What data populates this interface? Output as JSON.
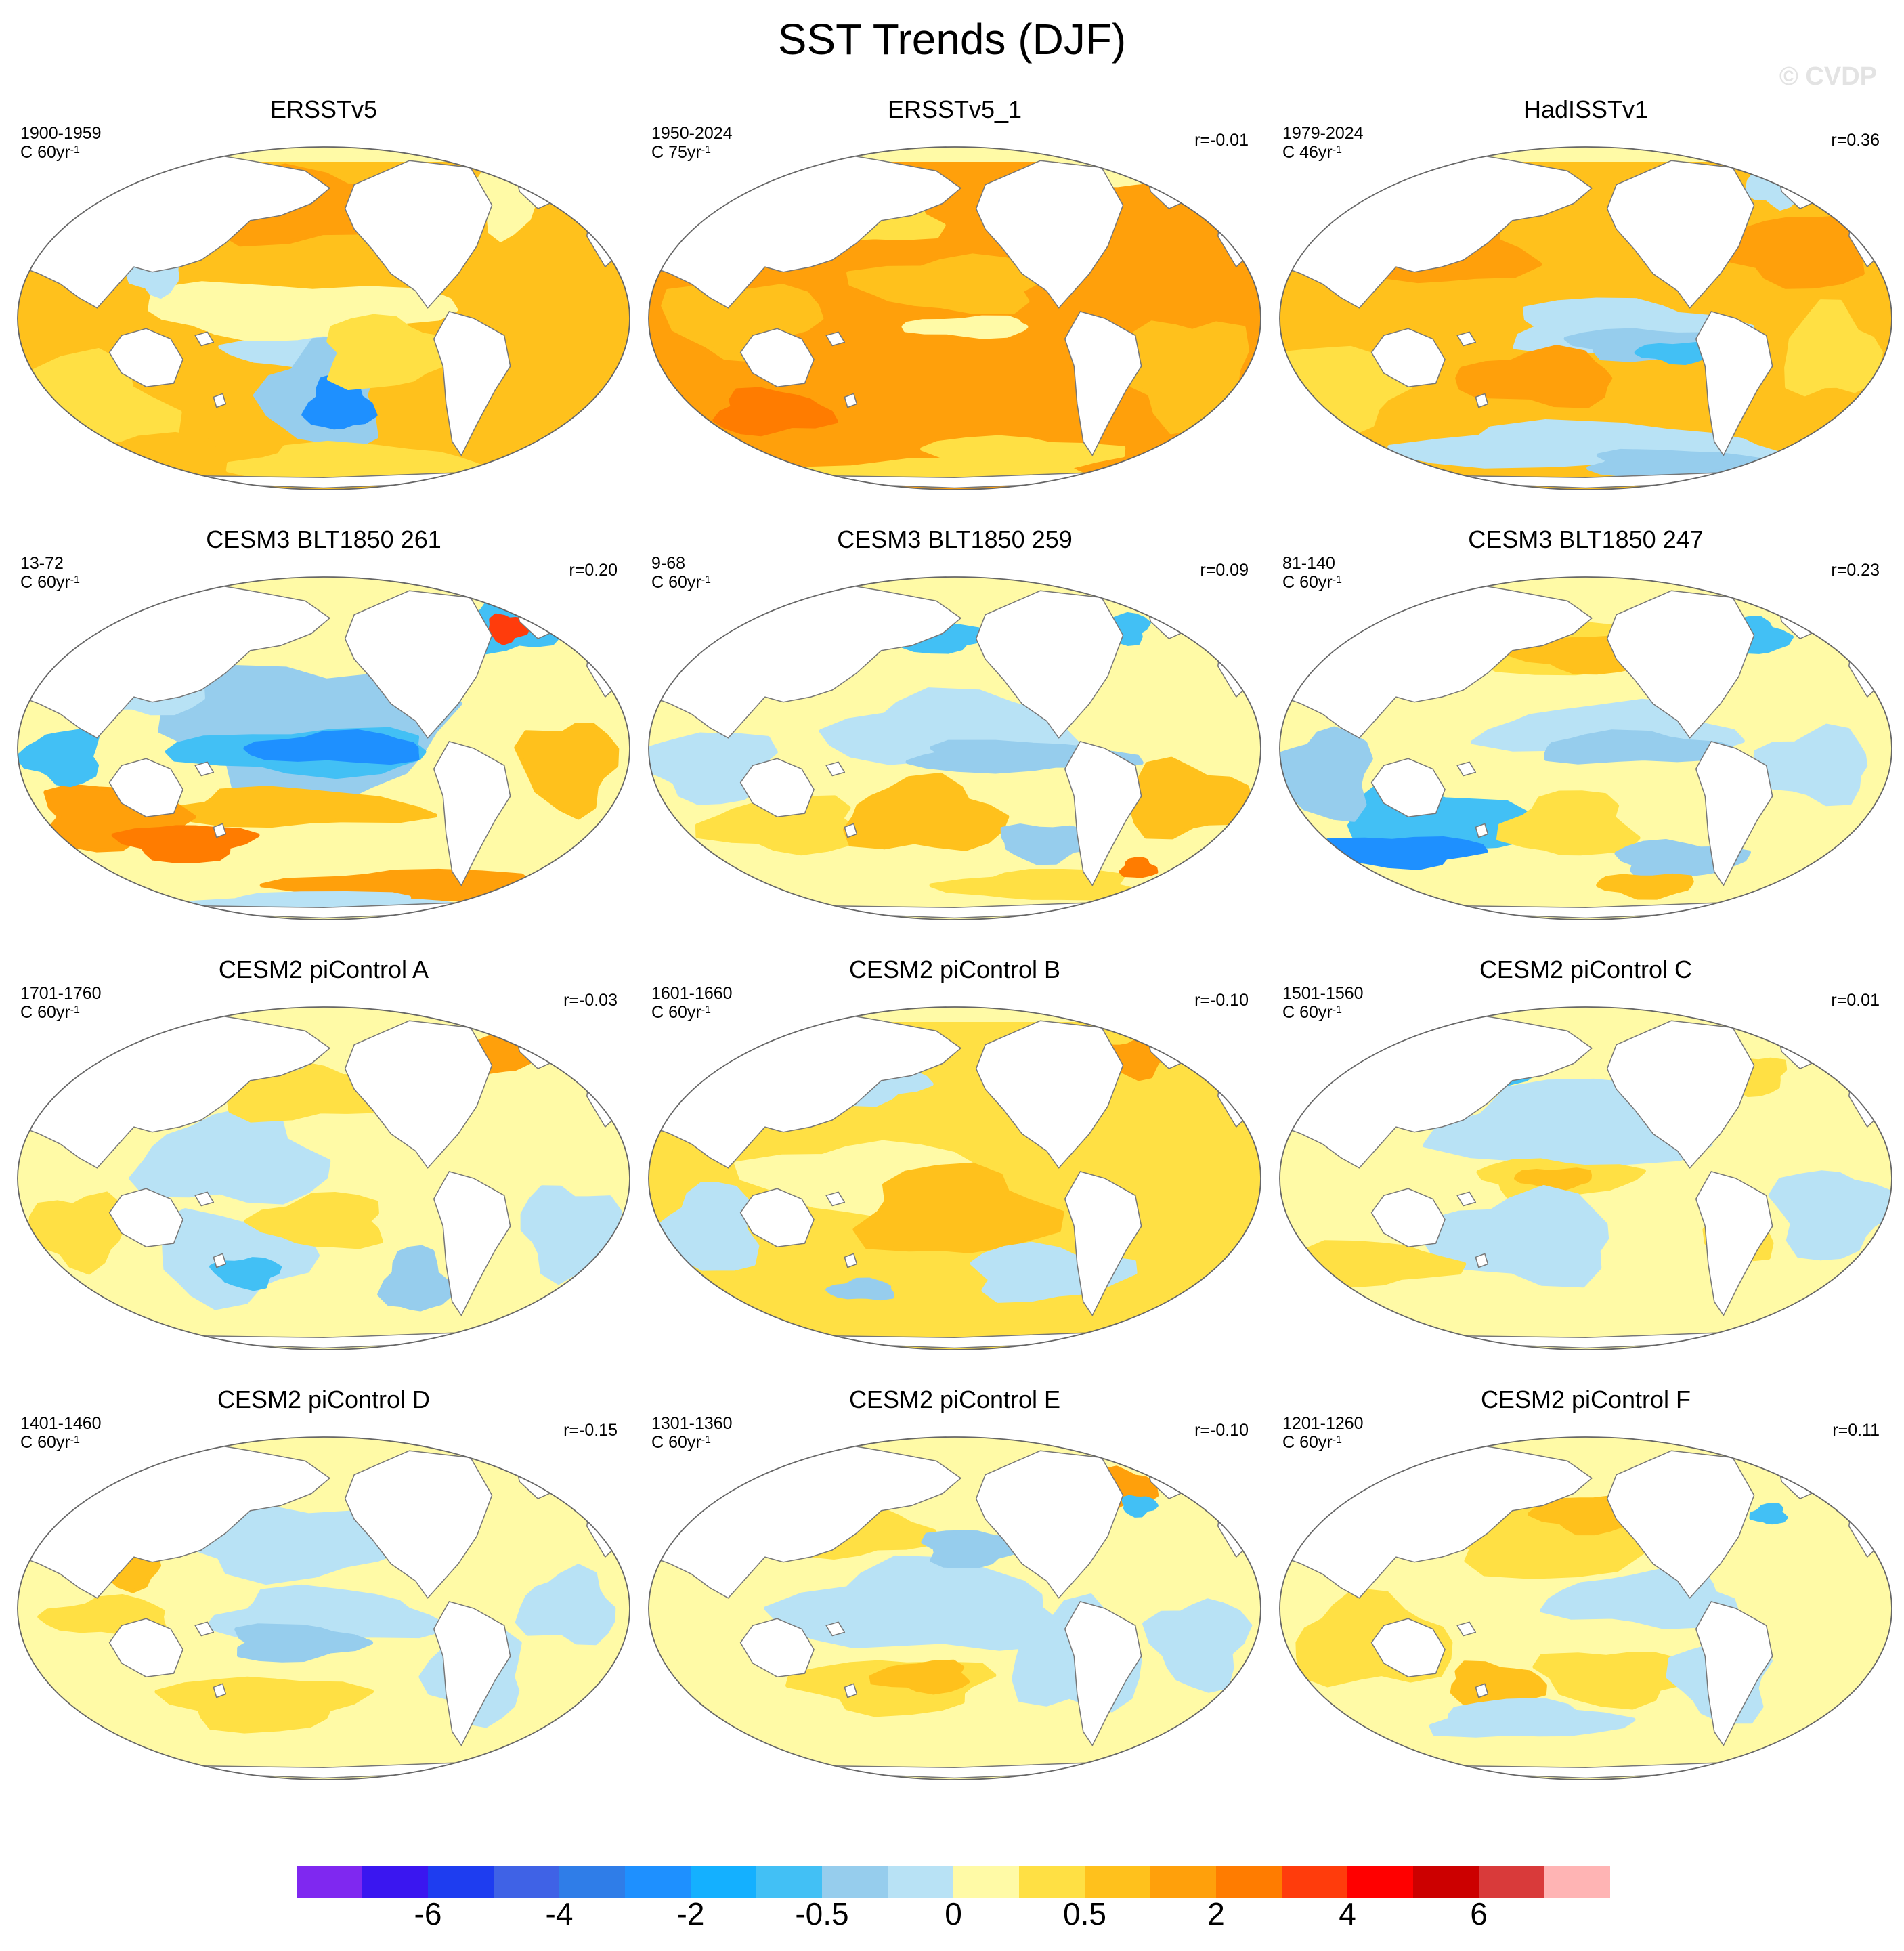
{
  "title": "SST Trends (DJF)",
  "watermark": "© CVDP",
  "unit_prefix": "C",
  "unit_suffix": "yr",
  "unit_exponent": "-1",
  "chart_data": {
    "type": "heatmap",
    "projection": "global Robinson-style map, Pacific-centered",
    "layout": {
      "rows": 4,
      "cols": 3
    },
    "panels": [
      {
        "title": "ERSSTv5",
        "years": "1900-1959",
        "trend_period": "60",
        "corr": "",
        "pattern": "warm"
      },
      {
        "title": "ERSSTv5_1",
        "years": "1950-2024",
        "trend_period": "75",
        "corr": "r=-0.01",
        "pattern": "strongwarm"
      },
      {
        "title": "HadISSTv1",
        "years": "1979-2024",
        "trend_period": "46",
        "corr": "r=0.36",
        "pattern": "lanina"
      },
      {
        "title": "CESM3 BLT1850 261",
        "years": "13-72",
        "trend_period": "60",
        "corr": "r=0.20",
        "pattern": "blt261"
      },
      {
        "title": "CESM3 BLT1850 259",
        "years": "9-68",
        "trend_period": "60",
        "corr": "r=0.09",
        "pattern": "blt259"
      },
      {
        "title": "CESM3 BLT1850 247",
        "years": "81-140",
        "trend_period": "60",
        "corr": "r=0.23",
        "pattern": "blt247"
      },
      {
        "title": "CESM2 piControl A",
        "years": "1701-1760",
        "trend_period": "60",
        "corr": "r=-0.03",
        "pattern": "picA"
      },
      {
        "title": "CESM2 piControl B",
        "years": "1601-1660",
        "trend_period": "60",
        "corr": "r=-0.10",
        "pattern": "picB"
      },
      {
        "title": "CESM2 piControl C",
        "years": "1501-1560",
        "trend_period": "60",
        "corr": "r=0.01",
        "pattern": "picC"
      },
      {
        "title": "CESM2 piControl D",
        "years": "1401-1460",
        "trend_period": "60",
        "corr": "r=-0.15",
        "pattern": "picD"
      },
      {
        "title": "CESM2 piControl E",
        "years": "1301-1360",
        "trend_period": "60",
        "corr": "r=-0.10",
        "pattern": "picE"
      },
      {
        "title": "CESM2 piControl F",
        "years": "1201-1260",
        "trend_period": "60",
        "corr": "r=0.11",
        "pattern": "picF"
      }
    ],
    "colorbar": {
      "colors": [
        "#7f28f0",
        "#3a16f0",
        "#1e3df0",
        "#3f62e6",
        "#2f7de8",
        "#1e90ff",
        "#14b0ff",
        "#42c0f5",
        "#96cded",
        "#b8e2f5",
        "#fffaa6",
        "#ffe044",
        "#ffc11c",
        "#ffa00b",
        "#ff7c00",
        "#ff3c0c",
        "#ff0000",
        "#cc0000",
        "#d93a3a",
        "#ffb4b4"
      ],
      "tick_labels": [
        "-6",
        "-4",
        "-2",
        "-0.5",
        "0",
        "0.5",
        "2",
        "4",
        "6"
      ]
    }
  }
}
